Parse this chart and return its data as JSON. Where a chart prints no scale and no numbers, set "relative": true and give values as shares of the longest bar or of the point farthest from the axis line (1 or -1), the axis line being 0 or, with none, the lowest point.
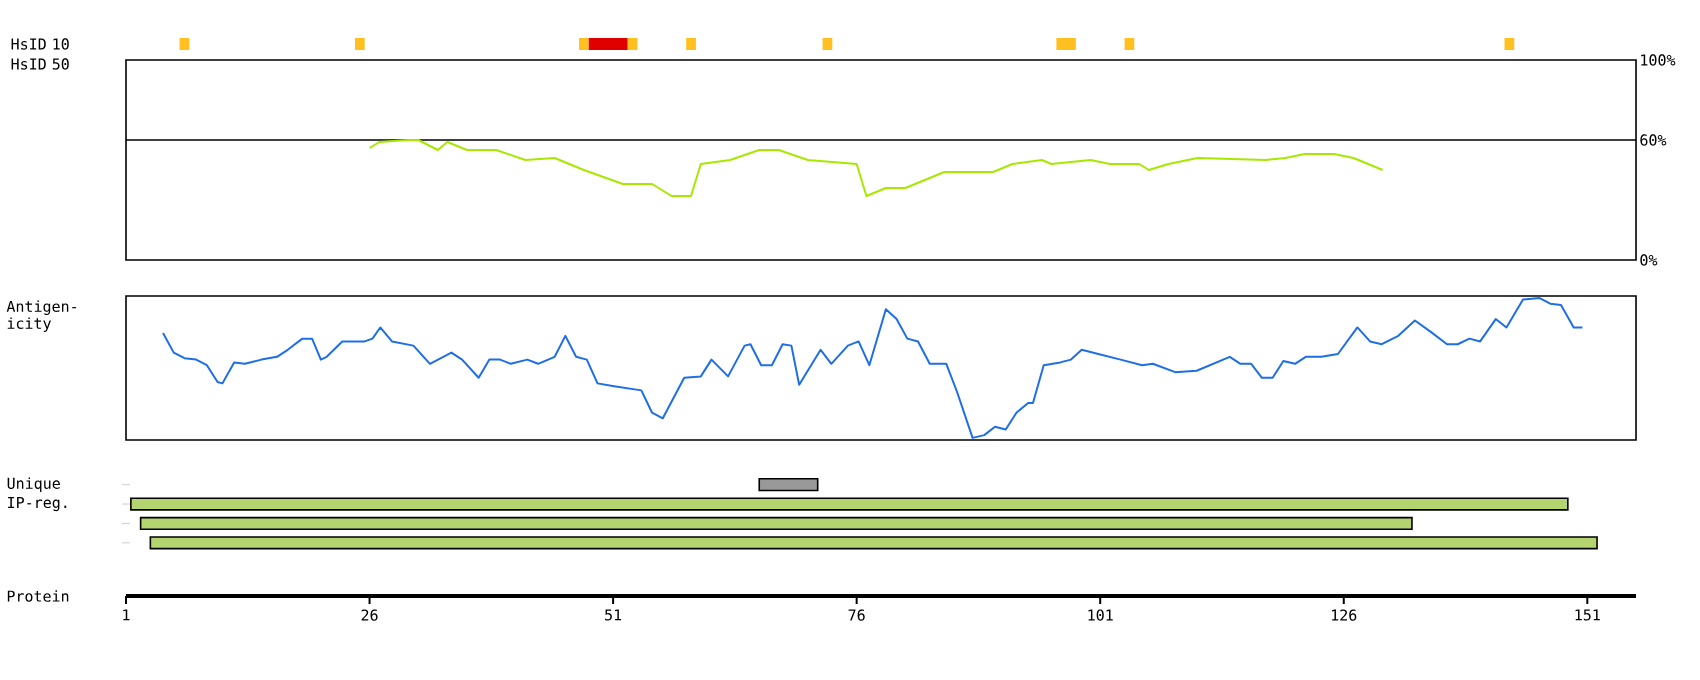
{
  "chart_data": [
    {
      "type": "bar",
      "orientation": "horizontal",
      "categories": [
        "HsID 10",
        "HsID 50"
      ],
      "xlim": [
        1,
        151
      ],
      "xticks": [
        1,
        26,
        51,
        76,
        101,
        126,
        151
      ],
      "tick_labels": "y",
      "series": [
        {
          "color": "#ffc020",
          "values": [
            1,
            null
          ],
          "base": [
            6.5,
            null
          ]
        },
        {
          "color": "#ffc020",
          "values": [
            1,
            null
          ],
          "base": [
            24.5,
            null
          ]
        },
        {
          "color": "#ffc020",
          "values": [
            1,
            null
          ],
          "base": [
            47.5,
            null
          ]
        },
        {
          "color": "#e00000",
          "values": [
            4,
            null
          ],
          "base": [
            48.5,
            null
          ]
        },
        {
          "color": "#ffc020",
          "values": [
            1,
            null
          ],
          "base": [
            52.5,
            null
          ]
        },
        {
          "color": "#ffc020",
          "values": [
            1,
            null
          ],
          "base": [
            58.5,
            null
          ]
        },
        {
          "color": "#ffc020",
          "values": [
            1,
            null
          ],
          "base": [
            72.5,
            null
          ]
        },
        {
          "color": "#ffc020",
          "values": [
            2,
            null
          ],
          "base": [
            96.5,
            null
          ]
        },
        {
          "color": "#ffc020",
          "values": [
            1,
            null
          ],
          "base": [
            103.5,
            null
          ]
        },
        {
          "color": "#ffc020",
          "values": [
            1,
            null
          ],
          "base": [
            142.5,
            null
          ]
        }
      ]
    },
    {
      "type": "line",
      "xlim": [
        1,
        156
      ],
      "ylim": [
        0,
        100
      ],
      "tick_labels": "y",
      "yticks": [
        {
          "value": 100,
          "label": "100%"
        },
        {
          "value": 60,
          "label": "60%"
        },
        {
          "value": 0,
          "label": "0%"
        }
      ],
      "ref_lines": [
        {
          "axis": "y",
          "value": 60,
          "color": "#000000"
        }
      ],
      "x": [
        26,
        27,
        30,
        31,
        33,
        34,
        36,
        39,
        42,
        45,
        48,
        52,
        55,
        57,
        59,
        60,
        63,
        66,
        68,
        71,
        76,
        77,
        79,
        81,
        85,
        90,
        92,
        95,
        96,
        100,
        102,
        105,
        106,
        108,
        111,
        118,
        120,
        122,
        125,
        127,
        130
      ],
      "series": [
        {
          "color": "#a8e800",
          "values": [
            56,
            59,
            60,
            60,
            55,
            59,
            55,
            55,
            50,
            51,
            45,
            38,
            38,
            32,
            32,
            48,
            50,
            55,
            55,
            50,
            48,
            32,
            36,
            36,
            44,
            44,
            48,
            50,
            48,
            50,
            48,
            48,
            45,
            48,
            51,
            50,
            51,
            53,
            53,
            51,
            45
          ]
        }
      ]
    },
    {
      "type": "line",
      "ylabel": "Antigen- icity",
      "relative": true,
      "xlim": [
        1,
        156
      ],
      "tick_labels": false,
      "x": [
        4.8,
        5.9,
        7.0,
        8.2,
        9.3,
        10.4,
        10.9,
        12.1,
        13.2,
        14.9,
        16.5,
        17.6,
        19.1,
        20.1,
        21.0,
        21.6,
        23.2,
        25.5,
        26.3,
        27.1,
        28.3,
        30.5,
        32.2,
        34.4,
        35.5,
        37.2,
        38.3,
        39.4,
        40.5,
        42.2,
        43.3,
        45.0,
        46.1,
        47.2,
        48.3,
        49.4,
        51.1,
        53.9,
        55.0,
        56.1,
        58.3,
        60.0,
        61.1,
        62.8,
        64.5,
        65.1,
        66.2,
        67.3,
        68.4,
        69.3,
        70.1,
        72.3,
        73.4,
        75.1,
        76.2,
        77.3,
        79.0,
        80.1,
        81.2,
        82.3,
        83.5,
        85.2,
        86.3,
        87.9,
        89.1,
        90.2,
        91.3,
        92.4,
        93.6,
        94.1,
        95.2,
        96.9,
        98.0,
        99.1,
        100.8,
        103.1,
        105.3,
        106.4,
        108.7,
        110.9,
        114.3,
        115.4,
        116.5,
        117.6,
        118.7,
        119.8,
        121.0,
        122.1,
        123.7,
        125.4,
        127.4,
        128.7,
        129.9,
        131.6,
        133.3,
        134.9,
        136.6,
        137.7,
        138.9,
        140.0,
        141.6,
        142.7,
        144.4,
        146.1,
        147.2,
        148.3,
        149.6,
        150.5
      ],
      "series": [
        {
          "color": "#1e6ee6",
          "values": [
            0.75,
            0.61,
            0.57,
            0.56,
            0.52,
            0.4,
            0.39,
            0.54,
            0.53,
            0.56,
            0.58,
            0.63,
            0.71,
            0.71,
            0.56,
            0.58,
            0.69,
            0.69,
            0.71,
            0.79,
            0.69,
            0.66,
            0.53,
            0.61,
            0.56,
            0.43,
            0.56,
            0.56,
            0.53,
            0.56,
            0.53,
            0.58,
            0.73,
            0.58,
            0.56,
            0.39,
            0.37,
            0.34,
            0.18,
            0.14,
            0.43,
            0.44,
            0.56,
            0.44,
            0.66,
            0.67,
            0.52,
            0.52,
            0.67,
            0.66,
            0.38,
            0.63,
            0.53,
            0.66,
            0.69,
            0.52,
            0.92,
            0.85,
            0.71,
            0.69,
            0.53,
            0.53,
            0.33,
            0,
            0.02,
            0.08,
            0.06,
            0.18,
            0.25,
            0.25,
            0.52,
            0.54,
            0.56,
            0.63,
            0.6,
            0.56,
            0.52,
            0.53,
            0.47,
            0.48,
            0.58,
            0.53,
            0.53,
            0.43,
            0.43,
            0.55,
            0.53,
            0.58,
            0.58,
            0.6,
            0.79,
            0.69,
            0.67,
            0.73,
            0.84,
            0.76,
            0.67,
            0.67,
            0.71,
            0.69,
            0.85,
            0.79,
            0.99,
            1,
            0.96,
            0.95,
            0.79,
            0.79
          ]
        }
      ]
    },
    {
      "type": "bar",
      "orientation": "horizontal",
      "categories": [
        "Unique",
        "IP-reg.",
        null,
        null
      ],
      "values": [
        6,
        147.5,
        130.5,
        148.5
      ],
      "base": [
        66,
        1.5,
        2.5,
        3.5
      ],
      "colors": [
        "#999999",
        "#b4d470",
        "#b4d470",
        "#b4d470"
      ],
      "xlim": [
        1,
        156
      ],
      "xticks": [
        1,
        26,
        51,
        76,
        101,
        126,
        151
      ],
      "xlabel": "Protein"
    }
  ]
}
